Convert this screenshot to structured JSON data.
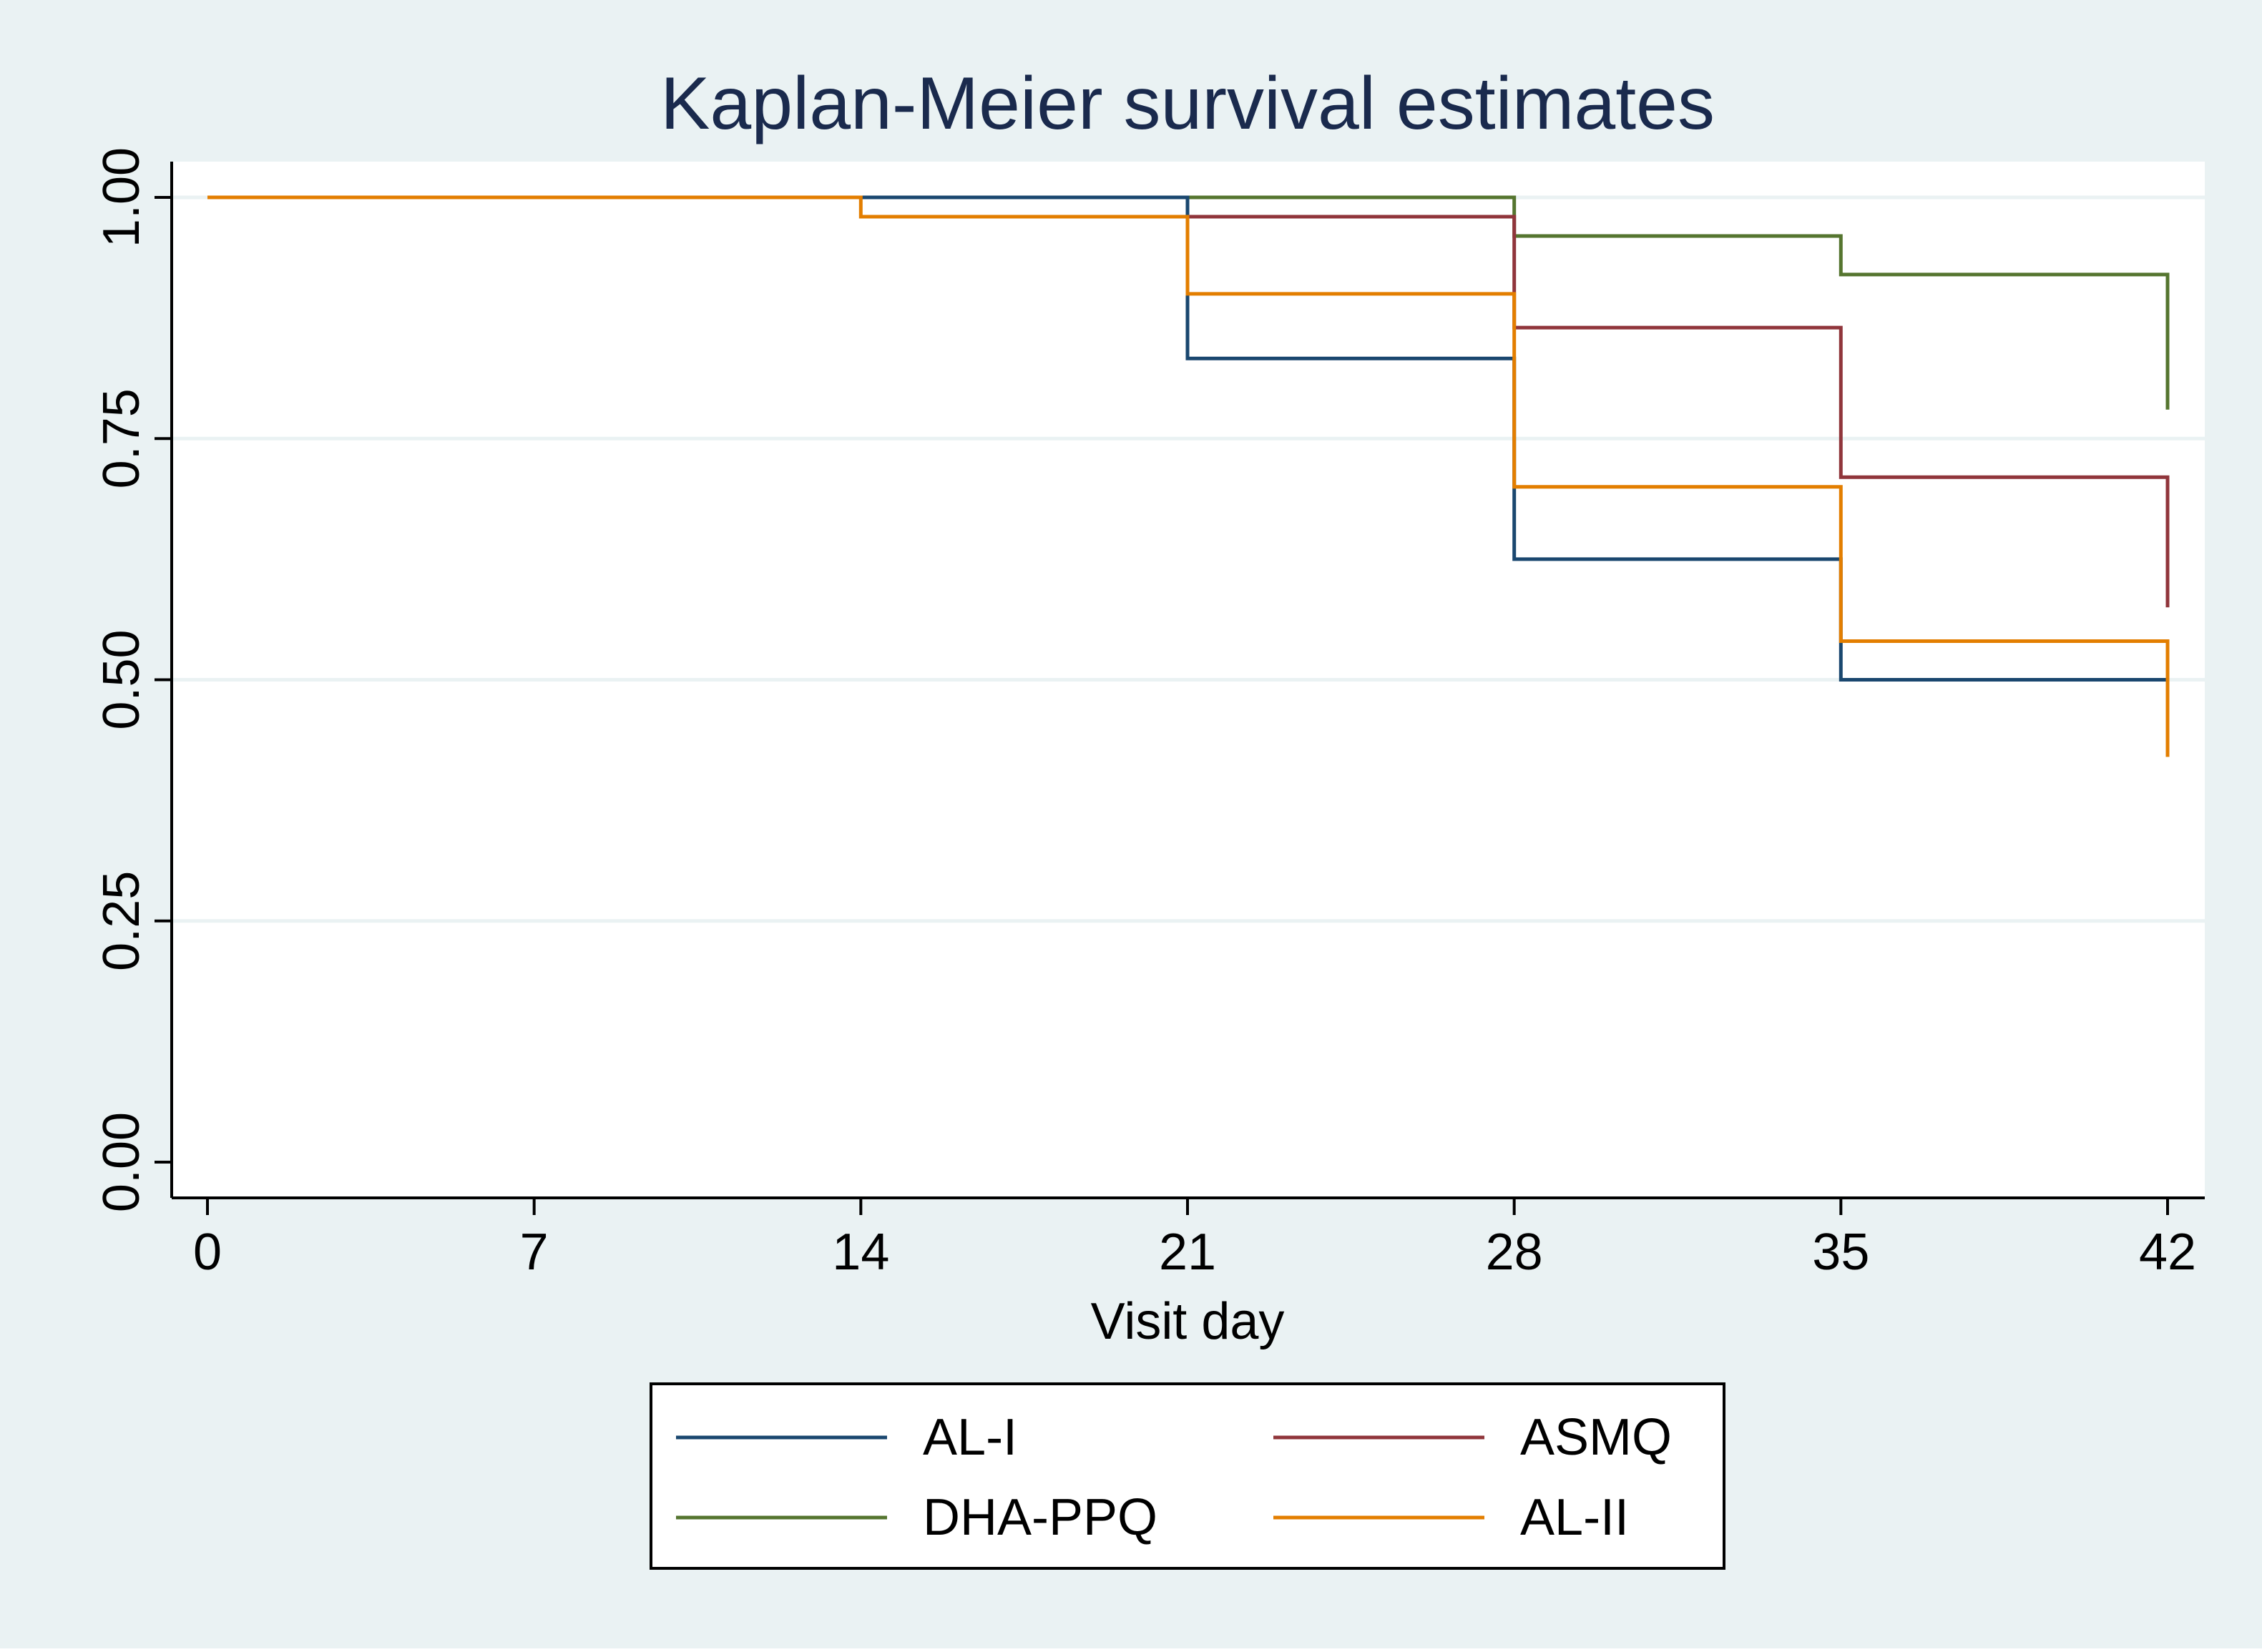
{
  "chart_data": {
    "type": "line",
    "subtype": "step",
    "title": "Kaplan-Meier survival estimates",
    "xlabel": "Visit day",
    "ylabel": "",
    "xlim": [
      0,
      42
    ],
    "ylim": [
      0,
      1
    ],
    "x_ticks": [
      0,
      7,
      14,
      21,
      28,
      35,
      42
    ],
    "x_tick_labels": [
      "0",
      "7",
      "14",
      "21",
      "28",
      "35",
      "42"
    ],
    "y_ticks": [
      0,
      0.25,
      0.5,
      0.75,
      1.0
    ],
    "y_tick_labels": [
      "0.00",
      "0.25",
      "0.50",
      "0.75",
      "1.00"
    ],
    "grid": "horizontal",
    "legend_position": "bottom",
    "colors": {
      "outer_background": "#eaf2f3",
      "plot_background": "#ffffff",
      "gridline": "#eaf2f3",
      "axis": "#000000",
      "title": "#1a2a4d",
      "text": "#000000"
    },
    "series": [
      {
        "name": "AL-I",
        "color": "#1a476f",
        "steps": [
          [
            0,
            1.0
          ],
          [
            21,
            0.833
          ],
          [
            28,
            0.625
          ],
          [
            35,
            0.5
          ]
        ],
        "end_x": 42,
        "end_drop": 0.5
      },
      {
        "name": "ASMQ",
        "color": "#90353b",
        "steps": [
          [
            0,
            1.0
          ],
          [
            21,
            0.98
          ],
          [
            28,
            0.865
          ],
          [
            35,
            0.71
          ]
        ],
        "end_x": 42,
        "end_drop": 0.575
      },
      {
        "name": "DHA-PPQ",
        "color": "#55752f",
        "steps": [
          [
            0,
            1.0
          ],
          [
            28,
            0.96
          ],
          [
            35,
            0.92
          ]
        ],
        "end_x": 42,
        "end_drop": 0.78
      },
      {
        "name": "AL-II",
        "color": "#e37e00",
        "steps": [
          [
            0,
            1.0
          ],
          [
            14,
            0.98
          ],
          [
            21,
            0.9
          ],
          [
            28,
            0.7
          ],
          [
            35,
            0.54
          ]
        ],
        "end_x": 42,
        "end_drop": 0.42
      }
    ],
    "legend_order": [
      "AL-I",
      "ASMQ",
      "DHA-PPQ",
      "AL-II"
    ]
  }
}
